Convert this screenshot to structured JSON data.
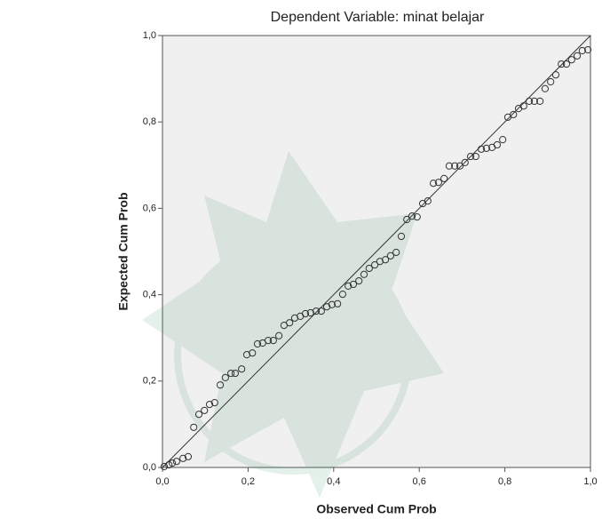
{
  "chart_data": {
    "type": "scatter",
    "title": "Dependent Variable: minat belajar",
    "x_label": "Observed Cum Prob",
    "y_label": "Expected Cum Prob",
    "xlim": [
      0,
      1
    ],
    "ylim": [
      0,
      1
    ],
    "xticks": [
      {
        "value": 0,
        "label": "0,0"
      },
      {
        "value": 0.2,
        "label": "0,2"
      },
      {
        "value": 0.4,
        "label": "0,4"
      },
      {
        "value": 0.6,
        "label": "0,6"
      },
      {
        "value": 0.8,
        "label": "0,8"
      },
      {
        "value": 1,
        "label": "1,0"
      }
    ],
    "yticks": [
      {
        "value": 0,
        "label": "0,0"
      },
      {
        "value": 0.2,
        "label": "0,2"
      },
      {
        "value": 0.4,
        "label": "0,4"
      },
      {
        "value": 0.6,
        "label": "0,6"
      },
      {
        "value": 0.8,
        "label": "0,8"
      },
      {
        "value": 1,
        "label": "1,0"
      }
    ],
    "reference_line": true,
    "color": "#333333",
    "x": [
      0.004,
      0.015,
      0.023,
      0.033,
      0.048,
      0.06,
      0.073,
      0.085,
      0.098,
      0.11,
      0.122,
      0.135,
      0.147,
      0.16,
      0.17,
      0.185,
      0.197,
      0.21,
      0.222,
      0.234,
      0.247,
      0.259,
      0.272,
      0.284,
      0.297,
      0.309,
      0.322,
      0.334,
      0.346,
      0.359,
      0.371,
      0.384,
      0.396,
      0.409,
      0.421,
      0.434,
      0.446,
      0.459,
      0.471,
      0.483,
      0.496,
      0.508,
      0.521,
      0.533,
      0.546,
      0.558,
      0.571,
      0.583,
      0.595,
      0.608,
      0.62,
      0.633,
      0.645,
      0.658,
      0.67,
      0.683,
      0.695,
      0.707,
      0.72,
      0.732,
      0.745,
      0.757,
      0.77,
      0.782,
      0.795,
      0.807,
      0.82,
      0.832,
      0.844,
      0.857,
      0.869,
      0.882,
      0.894,
      0.907,
      0.919,
      0.932,
      0.944,
      0.956,
      0.969,
      0.981,
      0.994
    ],
    "values": [
      0.002,
      0.006,
      0.01,
      0.014,
      0.021,
      0.025,
      0.093,
      0.123,
      0.132,
      0.146,
      0.15,
      0.191,
      0.208,
      0.218,
      0.218,
      0.228,
      0.261,
      0.265,
      0.286,
      0.288,
      0.294,
      0.294,
      0.305,
      0.329,
      0.335,
      0.346,
      0.35,
      0.356,
      0.358,
      0.362,
      0.362,
      0.372,
      0.377,
      0.379,
      0.401,
      0.42,
      0.424,
      0.432,
      0.447,
      0.461,
      0.469,
      0.477,
      0.481,
      0.49,
      0.498,
      0.535,
      0.574,
      0.582,
      0.58,
      0.611,
      0.617,
      0.658,
      0.66,
      0.669,
      0.698,
      0.698,
      0.698,
      0.706,
      0.72,
      0.72,
      0.737,
      0.739,
      0.741,
      0.747,
      0.759,
      0.811,
      0.817,
      0.831,
      0.837,
      0.848,
      0.848,
      0.848,
      0.877,
      0.893,
      0.909,
      0.934,
      0.934,
      0.944,
      0.953,
      0.965,
      0.967
    ]
  }
}
